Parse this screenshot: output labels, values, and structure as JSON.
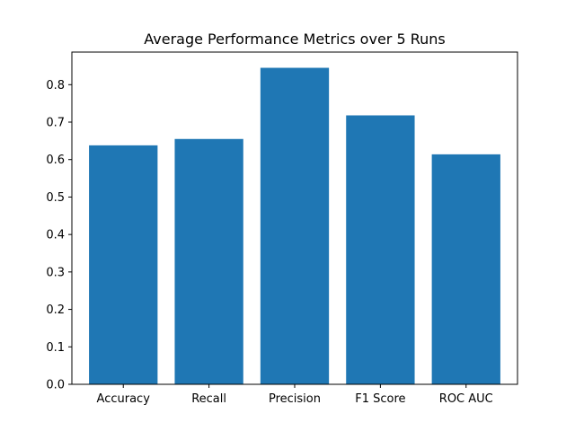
{
  "chart_data": {
    "type": "bar",
    "title": "Average Performance Metrics over 5 Runs",
    "xlabel": "",
    "ylabel": "",
    "categories": [
      "Accuracy",
      "Recall",
      "Precision",
      "F1 Score",
      "ROC AUC"
    ],
    "values": [
      0.638,
      0.655,
      0.845,
      0.718,
      0.614
    ],
    "ylim": [
      0,
      0.887
    ],
    "yticks": [
      "0.0",
      "0.1",
      "0.2",
      "0.3",
      "0.4",
      "0.5",
      "0.6",
      "0.7",
      "0.8"
    ],
    "grid": false,
    "bar_color": "#1f77b4"
  }
}
